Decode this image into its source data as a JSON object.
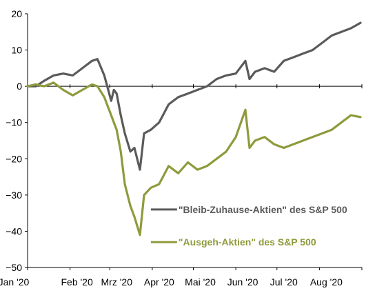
{
  "chart_data": {
    "type": "line",
    "title": "",
    "xlabel": "",
    "ylabel": "",
    "ylim": [
      -50,
      20
    ],
    "yticks": [
      20,
      10,
      0,
      -10,
      -20,
      -30,
      -40,
      -50
    ],
    "ytick_labels": [
      "20",
      "10",
      "0",
      "−10",
      "−20",
      "−30",
      "−40",
      "−50"
    ],
    "xticks": [
      "Jan '20",
      "Feb '20",
      "Mrz '20",
      "Apr '20",
      "Mai '20",
      "Jun '20",
      "Jul '20",
      "Aug '20"
    ],
    "grid": false,
    "baseline": 0,
    "series": [
      {
        "name": "\"Bleib-Zuhause-Aktien\" des S&P 500",
        "color": "#5a5a5a",
        "points": [
          [
            "2020-01-01",
            0
          ],
          [
            "2020-01-07",
            0
          ],
          [
            "2020-01-13",
            1.5
          ],
          [
            "2020-01-20",
            3
          ],
          [
            "2020-01-27",
            3.5
          ],
          [
            "2020-02-03",
            3
          ],
          [
            "2020-02-10",
            5
          ],
          [
            "2020-02-17",
            7
          ],
          [
            "2020-02-21",
            7.5
          ],
          [
            "2020-02-26",
            3
          ],
          [
            "2020-03-02",
            -4
          ],
          [
            "2020-03-04",
            -1
          ],
          [
            "2020-03-06",
            -2
          ],
          [
            "2020-03-09",
            -8
          ],
          [
            "2020-03-12",
            -13
          ],
          [
            "2020-03-16",
            -18
          ],
          [
            "2020-03-19",
            -17
          ],
          [
            "2020-03-23",
            -23
          ],
          [
            "2020-03-26",
            -13
          ],
          [
            "2020-03-31",
            -12
          ],
          [
            "2020-04-06",
            -10
          ],
          [
            "2020-04-13",
            -5
          ],
          [
            "2020-04-20",
            -3
          ],
          [
            "2020-04-27",
            -2
          ],
          [
            "2020-05-04",
            -1
          ],
          [
            "2020-05-11",
            0
          ],
          [
            "2020-05-18",
            2
          ],
          [
            "2020-05-25",
            3
          ],
          [
            "2020-06-01",
            3.5
          ],
          [
            "2020-06-08",
            7
          ],
          [
            "2020-06-11",
            2
          ],
          [
            "2020-06-15",
            4
          ],
          [
            "2020-06-22",
            5
          ],
          [
            "2020-06-29",
            4
          ],
          [
            "2020-07-06",
            7
          ],
          [
            "2020-07-13",
            8
          ],
          [
            "2020-07-20",
            9
          ],
          [
            "2020-07-27",
            10
          ],
          [
            "2020-08-03",
            12
          ],
          [
            "2020-08-10",
            14
          ],
          [
            "2020-08-17",
            15
          ],
          [
            "2020-08-24",
            16
          ],
          [
            "2020-08-31",
            17.5
          ]
        ]
      },
      {
        "name": "\"Ausgeh-Aktien\" des S&P 500",
        "color": "#8f9a3c",
        "points": [
          [
            "2020-01-01",
            0
          ],
          [
            "2020-01-07",
            0.5
          ],
          [
            "2020-01-13",
            0
          ],
          [
            "2020-01-20",
            1
          ],
          [
            "2020-01-27",
            -1
          ],
          [
            "2020-02-03",
            -2.5
          ],
          [
            "2020-02-10",
            -1
          ],
          [
            "2020-02-17",
            0.5
          ],
          [
            "2020-02-21",
            0
          ],
          [
            "2020-02-26",
            -3
          ],
          [
            "2020-03-02",
            -8
          ],
          [
            "2020-03-04",
            -10
          ],
          [
            "2020-03-06",
            -12
          ],
          [
            "2020-03-09",
            -18
          ],
          [
            "2020-03-12",
            -27
          ],
          [
            "2020-03-16",
            -33
          ],
          [
            "2020-03-19",
            -36
          ],
          [
            "2020-03-23",
            -41
          ],
          [
            "2020-03-26",
            -30
          ],
          [
            "2020-03-31",
            -28
          ],
          [
            "2020-04-06",
            -27
          ],
          [
            "2020-04-13",
            -22
          ],
          [
            "2020-04-20",
            -24
          ],
          [
            "2020-04-27",
            -21
          ],
          [
            "2020-05-04",
            -23
          ],
          [
            "2020-05-11",
            -22
          ],
          [
            "2020-05-18",
            -20
          ],
          [
            "2020-05-25",
            -18
          ],
          [
            "2020-06-01",
            -14
          ],
          [
            "2020-06-08",
            -6.5
          ],
          [
            "2020-06-11",
            -17
          ],
          [
            "2020-06-15",
            -15
          ],
          [
            "2020-06-22",
            -14
          ],
          [
            "2020-06-29",
            -16
          ],
          [
            "2020-07-06",
            -17
          ],
          [
            "2020-07-13",
            -16
          ],
          [
            "2020-07-20",
            -15
          ],
          [
            "2020-07-27",
            -14
          ],
          [
            "2020-08-03",
            -13
          ],
          [
            "2020-08-10",
            -12
          ],
          [
            "2020-08-17",
            -10
          ],
          [
            "2020-08-24",
            -8
          ],
          [
            "2020-08-31",
            -8.5
          ]
        ]
      }
    ],
    "legend": [
      {
        "label": "\"Bleib-Zuhause-Aktien\" des S&P 500",
        "color": "#5a5a5a",
        "anchor_date": "2020-03-31",
        "anchor_value": -34
      },
      {
        "label": "\"Ausgeh-Aktien\" des S&P 500",
        "color": "#8f9a3c",
        "anchor_date": "2020-03-31",
        "anchor_value": -43
      }
    ]
  }
}
